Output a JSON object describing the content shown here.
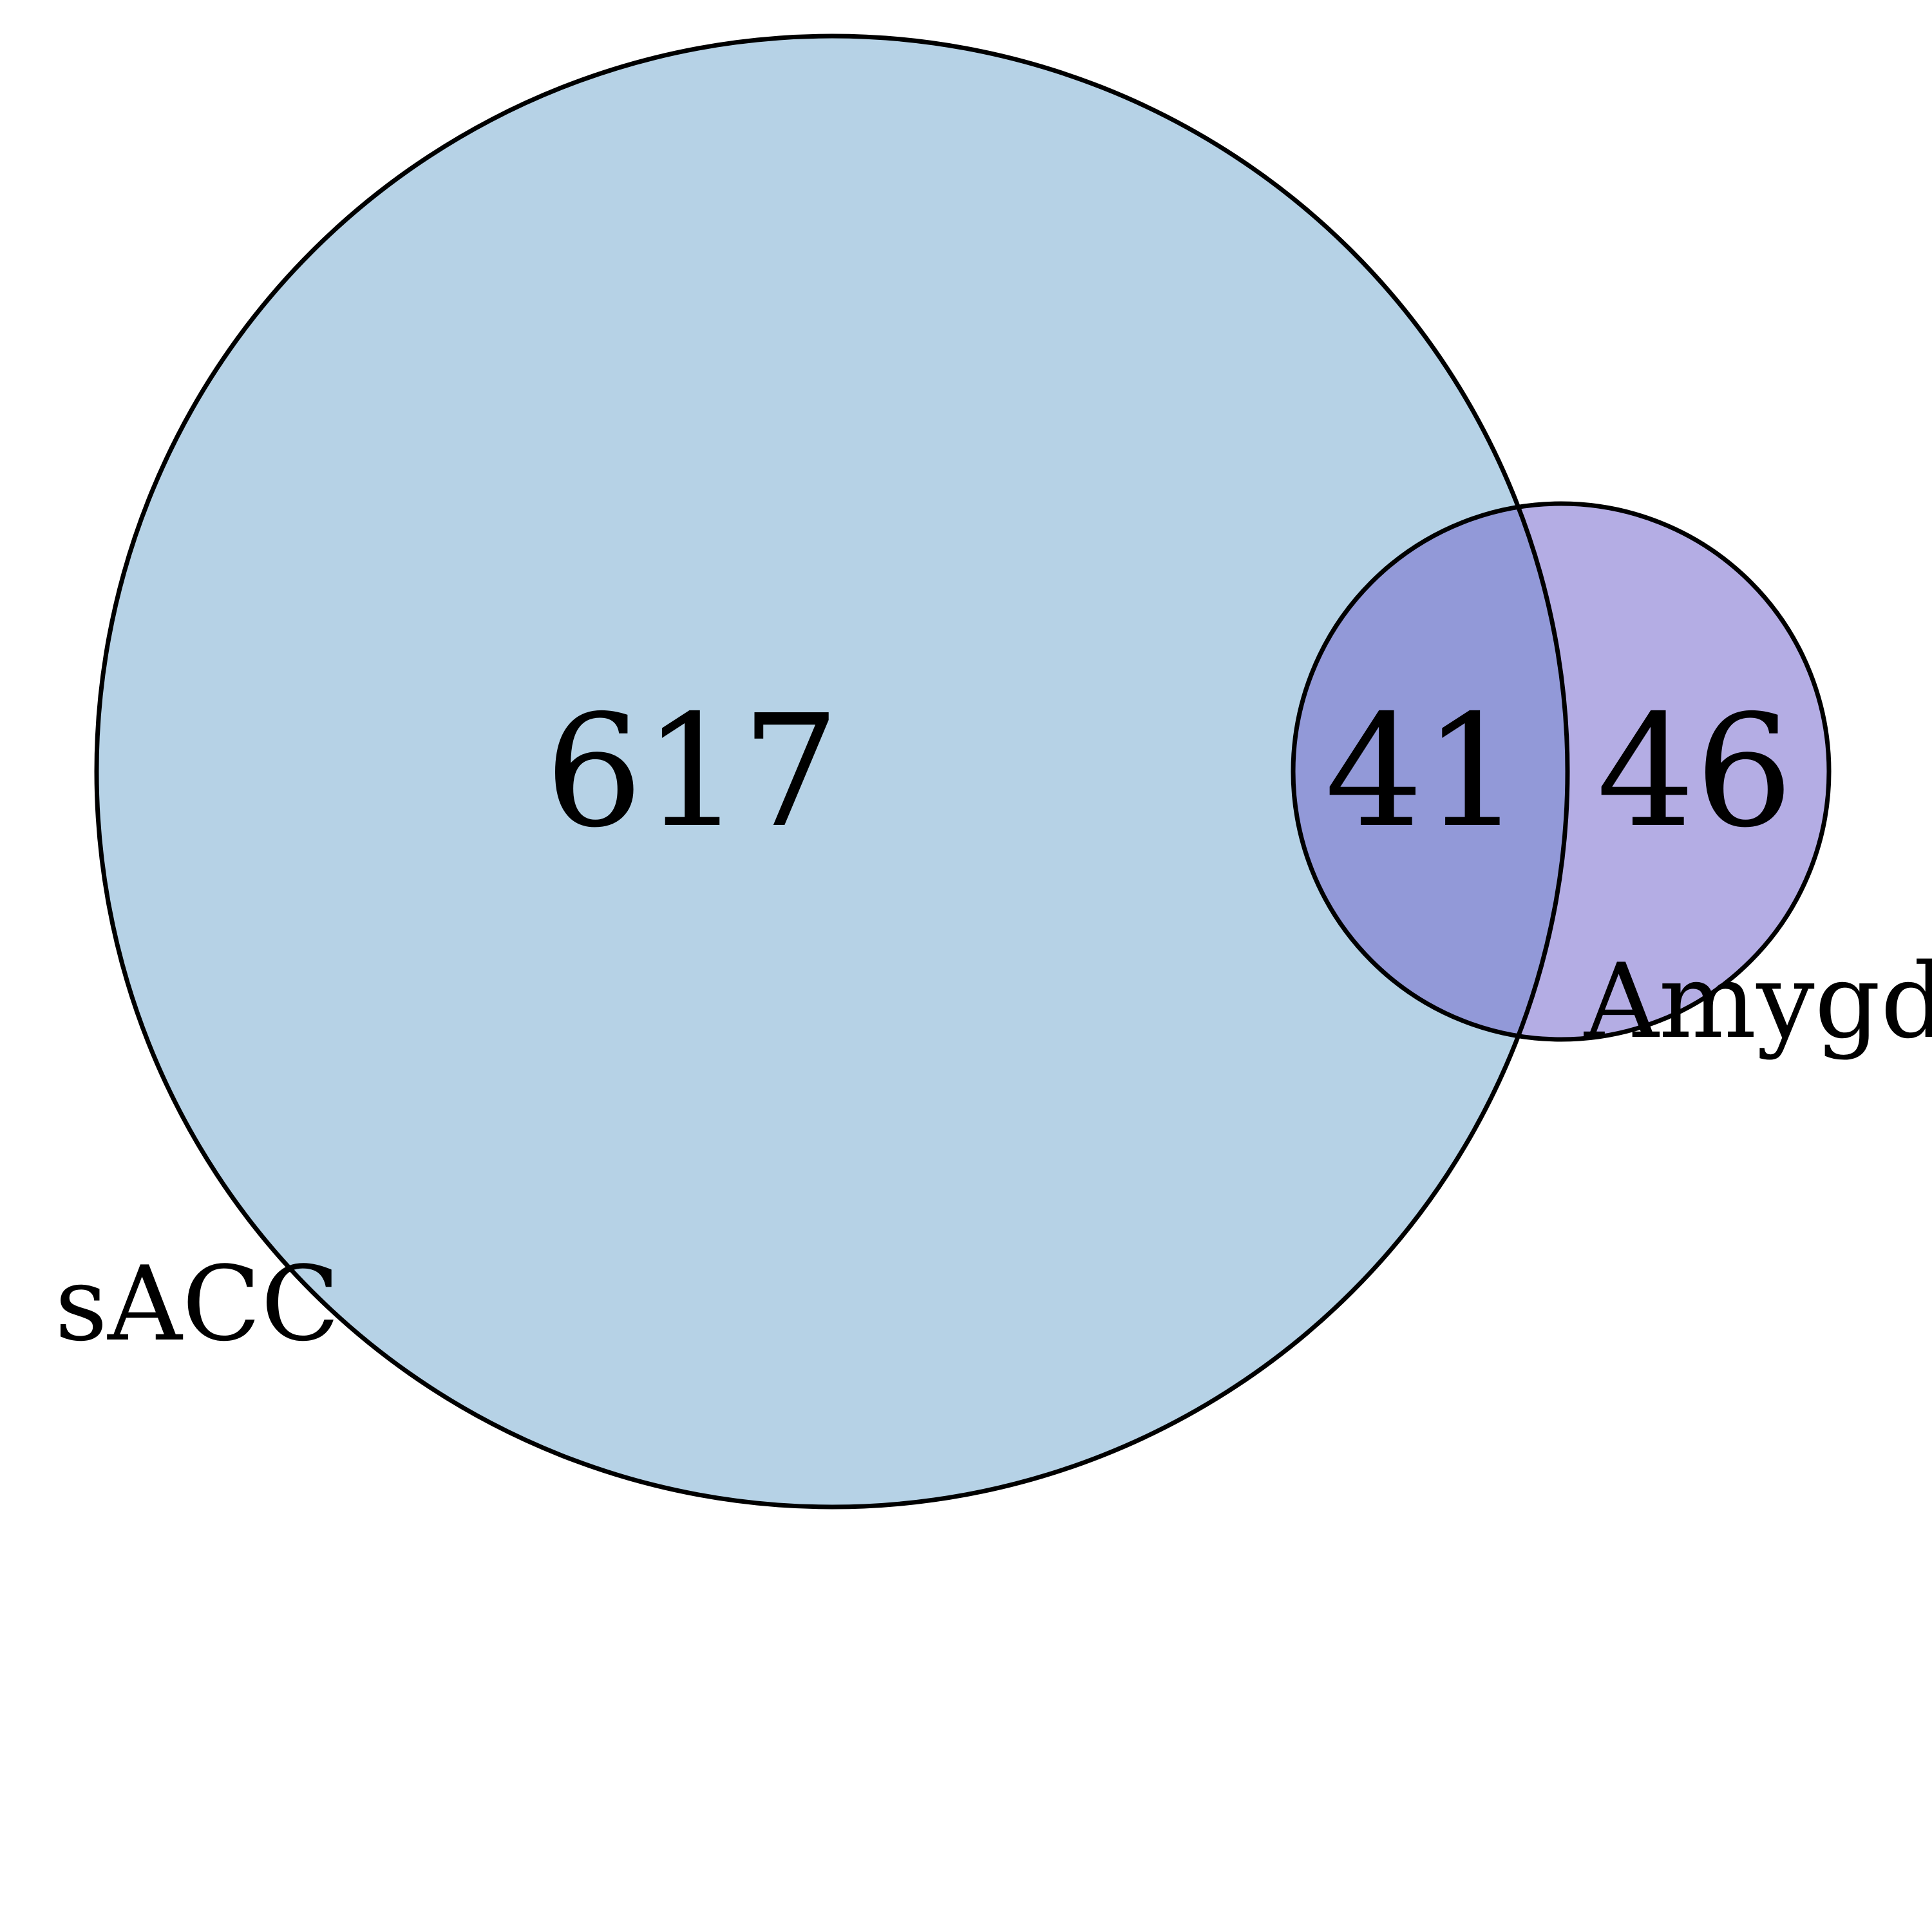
{
  "venn": {
    "sets": [
      {
        "name": "sACC",
        "color": "#b6d2e6"
      },
      {
        "name": "Amygd",
        "color": "#b4ade4"
      }
    ],
    "overlap_color": "#9299d8",
    "outline_color": "#000000",
    "counts": {
      "sacc_only": "617",
      "both": "41",
      "amygdala_only": "46"
    }
  }
}
